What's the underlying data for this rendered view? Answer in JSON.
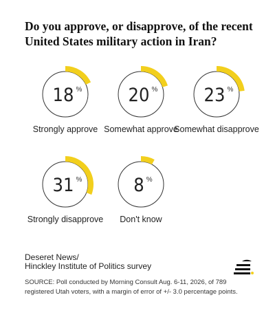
{
  "chart_data": {
    "type": "gauge",
    "title": [
      "Do you approve, or disapprove, of the recent",
      "United States military action in Iran?"
    ],
    "categories": [
      "Strongly approve",
      "Somewhat approve",
      "Somewhat disapprove",
      "Strongly disapprove",
      "Don't know"
    ],
    "values": [
      18,
      20,
      23,
      31,
      8
    ],
    "unit": "%",
    "color": "#f2cf1d",
    "source": [
      "Deseret News/",
      "Hinckley Institute of Politics survey"
    ],
    "note": [
      "SOURCE: Poll conducted by Morning Consult Aug. 6-11, 2026, of 789",
      "registered Utah voters, with a margin of error of +/- 3.0 percentage points."
    ]
  }
}
